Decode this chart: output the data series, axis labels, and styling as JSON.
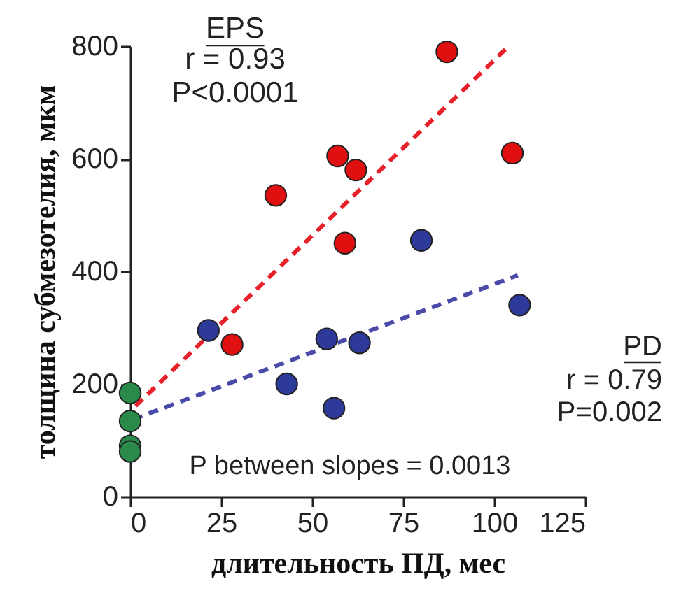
{
  "chart_data": {
    "type": "scatter",
    "xlabel": "длительность ПД, мес",
    "ylabel": "толщина субмезотелия, мкм",
    "xlim": [
      0,
      125
    ],
    "xticks": [
      0,
      25,
      50,
      75,
      100,
      125
    ],
    "ylim": [
      0,
      800
    ],
    "yticks": [
      0,
      200,
      400,
      600,
      800
    ],
    "grid": false,
    "marker": "circle",
    "series": [
      {
        "type": "line",
        "line_style": "dashed",
        "marker": "none",
        "color": "#e8202a",
        "x": [
          1.5,
          104
        ],
        "values": [
          161,
          800
        ]
      },
      {
        "type": "line",
        "line_style": "dashed",
        "marker": "none",
        "color": "#4a4aa8",
        "x": [
          0.8,
          106.5
        ],
        "values": [
          137,
          393
        ]
      },
      {
        "type": "scatter",
        "color": "#e01010",
        "x": [
          87,
          57,
          62,
          40,
          105,
          59,
          28
        ],
        "values": [
          790,
          605,
          580,
          535,
          610,
          450,
          270
        ]
      },
      {
        "type": "scatter",
        "color": "#2e3a9a",
        "x": [
          80,
          107,
          21.5,
          54,
          63,
          43,
          56
        ],
        "values": [
          455,
          340,
          295,
          280,
          273,
          200,
          157
        ]
      },
      {
        "type": "scatter",
        "color": "#2a8a4a",
        "x": [
          0,
          0,
          0,
          0
        ],
        "values": [
          184,
          134,
          90,
          80
        ]
      }
    ],
    "annotations": [
      "EPS",
      "r = 0.93",
      "P<0.0001",
      "PD",
      "r = 0.79",
      "P=0.002",
      "P between slopes = 0.0013"
    ]
  }
}
